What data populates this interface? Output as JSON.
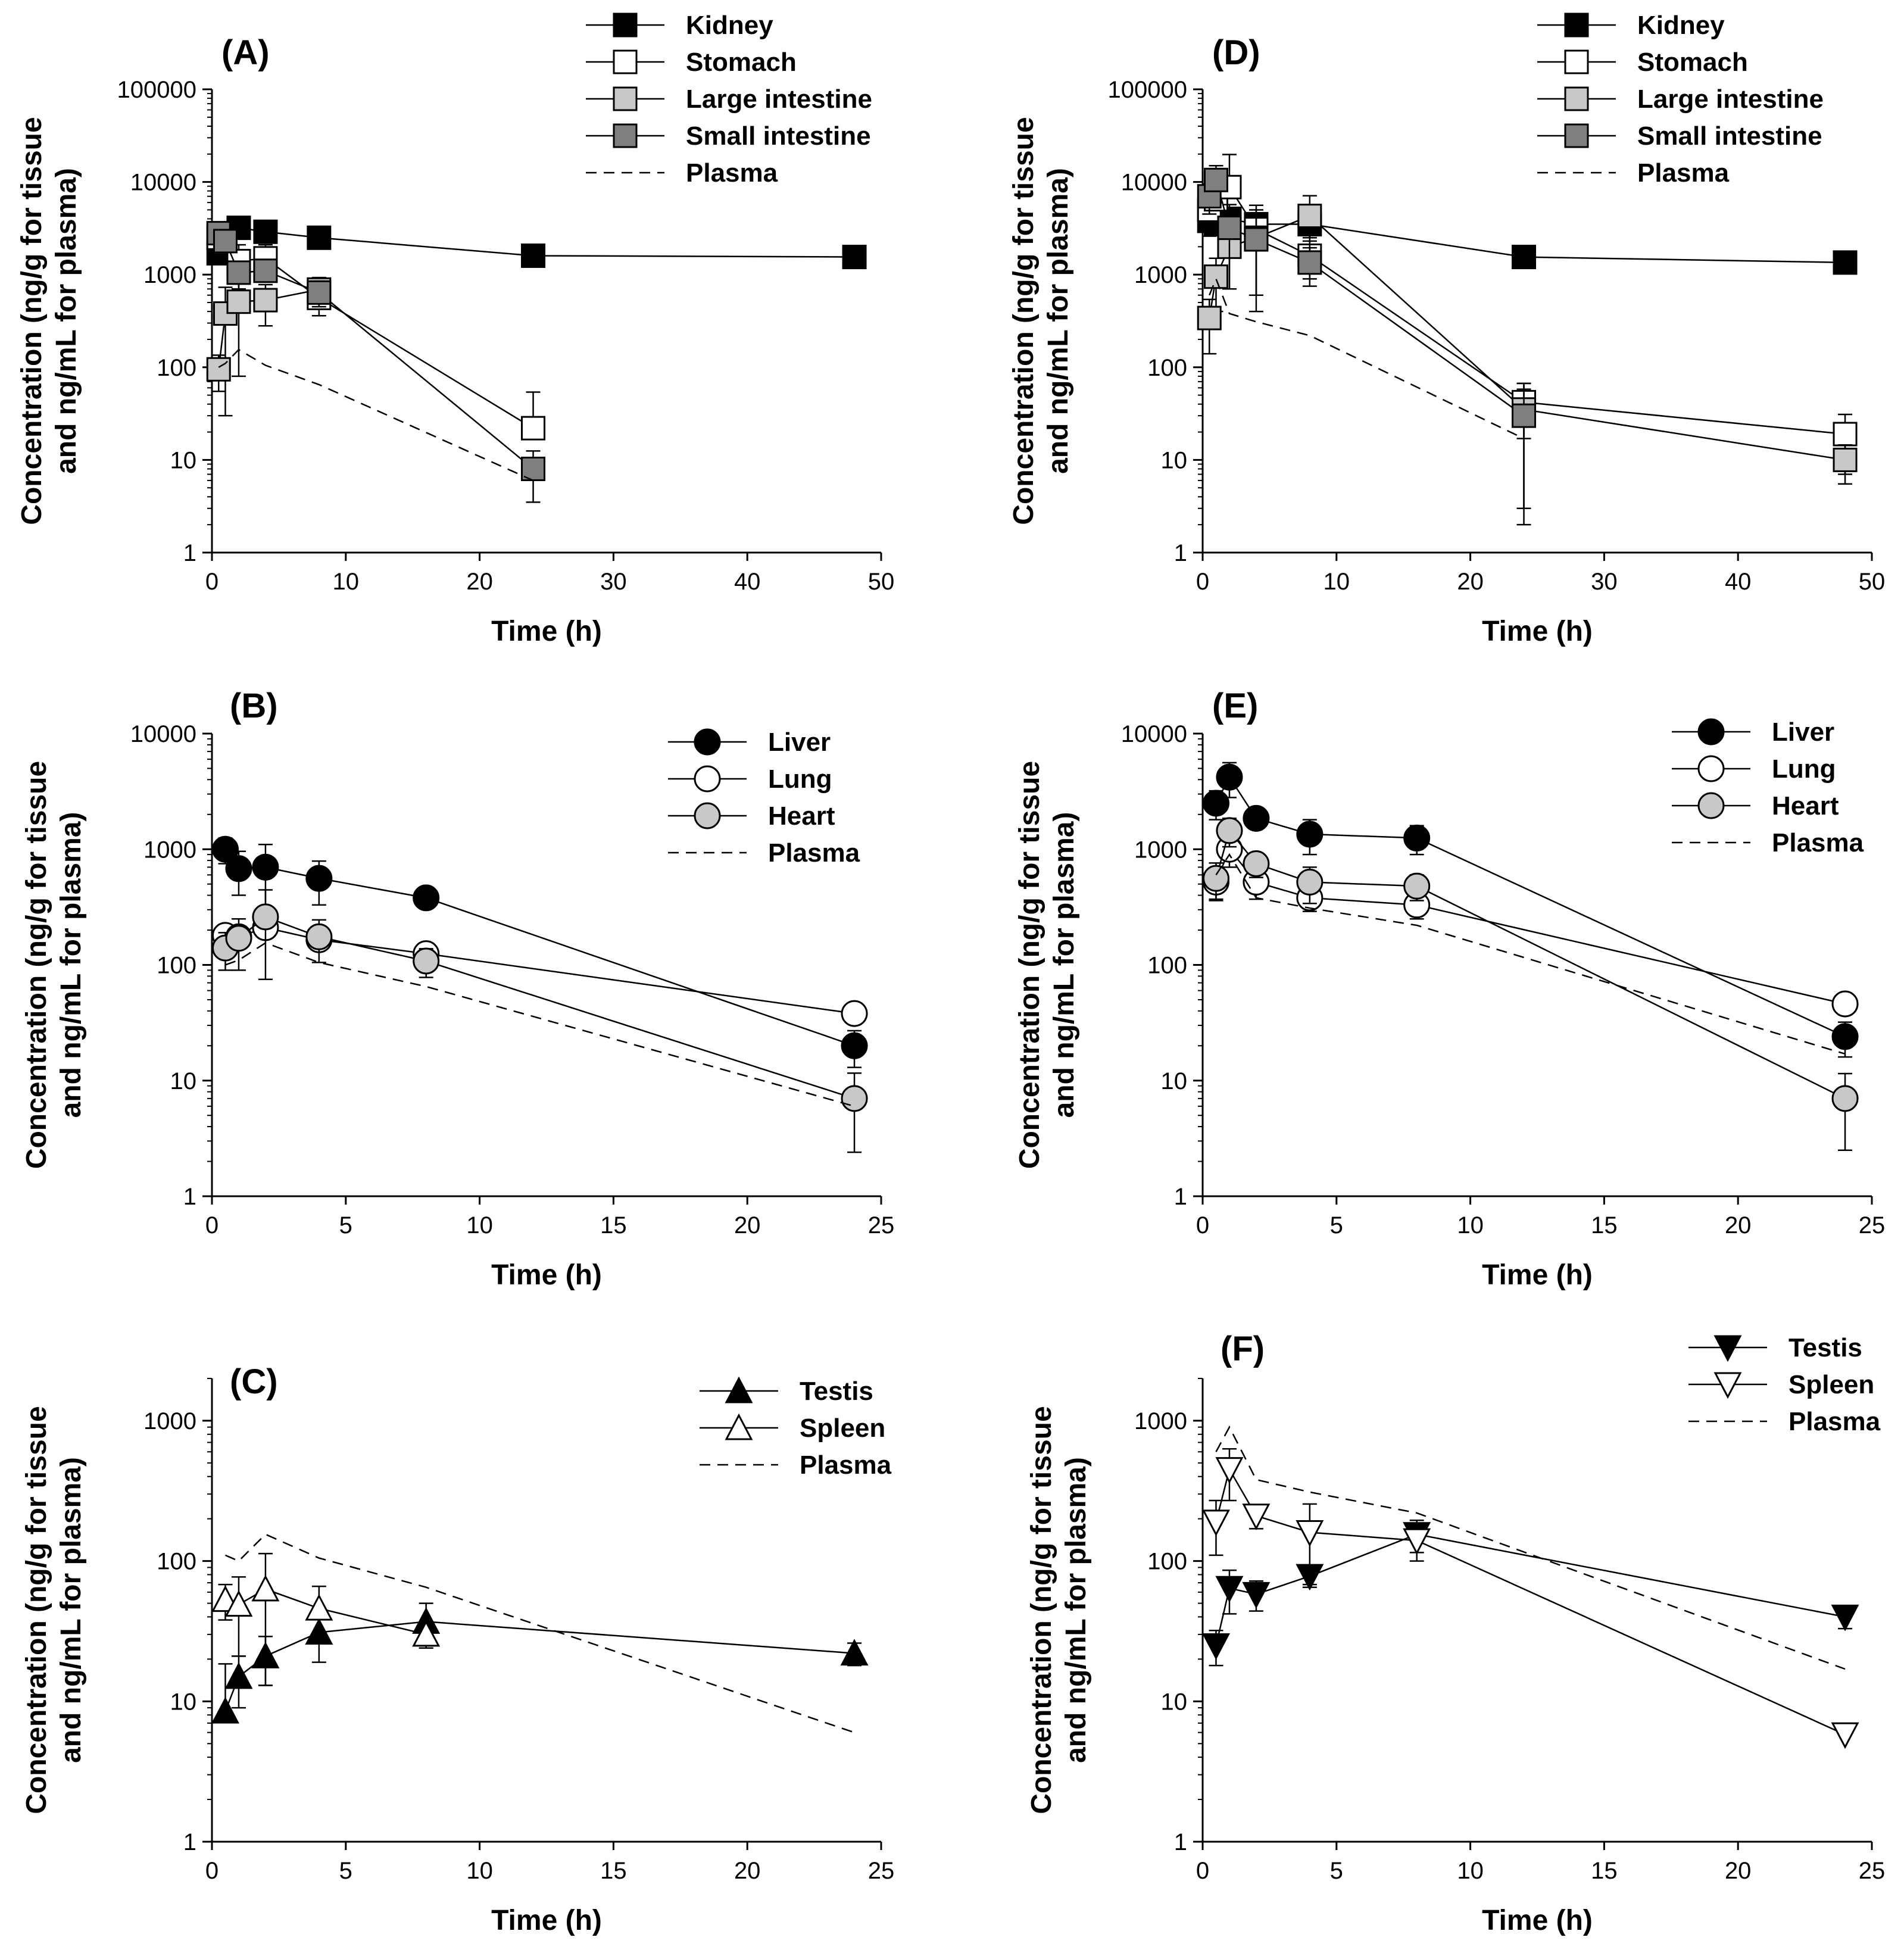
{
  "chart_data": [
    {
      "id": "A",
      "panel_label": "(A)",
      "type": "line",
      "xlabel": "Time (h)",
      "ylabel": [
        "Concentration (ng/g for tissue",
        "and ng/mL for plasma)"
      ],
      "yscale": "log",
      "xlim": [
        0,
        50
      ],
      "ylim": [
        1,
        100000
      ],
      "xticks": [
        "0",
        "10",
        "20",
        "30",
        "40",
        "50"
      ],
      "yticks": [
        "1",
        "10",
        "100",
        "1000",
        "10000",
        "100000"
      ],
      "legend_position": "top-right",
      "series": [
        {
          "name": "Kidney",
          "marker": "square",
          "fill": "#000000",
          "x": [
            0.5,
            1,
            2,
            4,
            8,
            24,
            48
          ],
          "y": [
            1700,
            2300,
            3200,
            2900,
            2500,
            1600,
            1550
          ]
        },
        {
          "name": "Stomach",
          "marker": "square",
          "fill": "#ffffff",
          "x": [
            0.5,
            1,
            2,
            4,
            8,
            24
          ],
          "y": [
            2500,
            2200,
            1400,
            1500,
            560,
            22
          ],
          "err": [
            null,
            null,
            700,
            600,
            200,
            32
          ]
        },
        {
          "name": "Large intestine",
          "marker": "square",
          "fill": "#c8c8c8",
          "x": [
            0.5,
            1,
            2,
            4,
            8
          ],
          "y": [
            95,
            380,
            510,
            530,
            690
          ],
          "err": [
            40,
            350,
            430,
            250,
            240
          ]
        },
        {
          "name": "Small intestine",
          "marker": "square",
          "fill": "#7f7f7f",
          "x": [
            0.5,
            1,
            2,
            4,
            8,
            24
          ],
          "y": [
            2800,
            2300,
            1050,
            1100,
            640,
            8
          ],
          "err": [
            null,
            null,
            null,
            null,
            null,
            4.5
          ]
        },
        {
          "name": "Plasma",
          "dashed": true,
          "x": [
            0.5,
            1,
            2,
            4,
            8,
            24
          ],
          "y": [
            100,
            110,
            155,
            105,
            65,
            6
          ]
        }
      ]
    },
    {
      "id": "B",
      "panel_label": "(B)",
      "type": "line",
      "xlabel": "Time (h)",
      "ylabel": [
        "Concentration (ng/g for tissue",
        "and ng/mL for plasma)"
      ],
      "yscale": "log",
      "xlim": [
        0,
        25
      ],
      "ylim": [
        1,
        10000
      ],
      "xticks": [
        "0",
        "5",
        "10",
        "15",
        "20",
        "25"
      ],
      "yticks": [
        "1",
        "10",
        "100",
        "1000",
        "10000"
      ],
      "legend_position": "top-right",
      "series": [
        {
          "name": "Liver",
          "marker": "circle",
          "fill": "#000000",
          "x": [
            0.5,
            1,
            2,
            4,
            8,
            24
          ],
          "y": [
            1000,
            680,
            700,
            560,
            380,
            20
          ],
          "err": [
            250,
            280,
            400,
            230,
            60,
            7
          ]
        },
        {
          "name": "Lung",
          "marker": "circle",
          "fill": "#ffffff",
          "x": [
            0.5,
            1,
            2,
            4,
            8,
            24
          ],
          "y": [
            180,
            175,
            210,
            165,
            125,
            38
          ],
          "err": [
            null,
            null,
            null,
            null,
            null,
            null
          ]
        },
        {
          "name": "Heart",
          "marker": "circle",
          "fill": "#c8c8c8",
          "x": [
            0.5,
            1,
            2,
            4,
            8,
            24
          ],
          "y": [
            140,
            170,
            260,
            175,
            108,
            7
          ],
          "err": [
            50,
            80,
            185,
            70,
            30,
            4.6
          ]
        },
        {
          "name": "Plasma",
          "dashed": true,
          "x": [
            0.5,
            1,
            2,
            4,
            8,
            24
          ],
          "y": [
            100,
            110,
            155,
            105,
            65,
            6
          ]
        }
      ]
    },
    {
      "id": "C",
      "panel_label": "(C)",
      "type": "line",
      "xlabel": "Time (h)",
      "ylabel": [
        "Concentration (ng/g for tissue",
        "and ng/mL for plasma)"
      ],
      "yscale": "log",
      "xlim": [
        0,
        25
      ],
      "ylim": [
        1,
        2000
      ],
      "xticks": [
        "0",
        "5",
        "10",
        "15",
        "20",
        "25"
      ],
      "yticks": [
        "1",
        "10",
        "100",
        "1000"
      ],
      "legend_position": "top-right",
      "series": [
        {
          "name": "Testis",
          "marker": "triangle-up",
          "fill": "#000000",
          "x": [
            0.5,
            1,
            2,
            4,
            8,
            24
          ],
          "y": [
            8.5,
            15,
            21,
            31,
            37,
            22
          ],
          "err": [
            10,
            6,
            8,
            12,
            13,
            4
          ]
        },
        {
          "name": "Spleen",
          "marker": "triangle-up",
          "fill": "#ffffff",
          "x": [
            0.5,
            1,
            2,
            4,
            8
          ],
          "y": [
            53,
            49,
            63,
            46,
            30
          ],
          "err": [
            15,
            28,
            50,
            20,
            6
          ]
        },
        {
          "name": "Plasma",
          "dashed": true,
          "x": [
            0.5,
            1,
            2,
            4,
            8,
            24
          ],
          "y": [
            110,
            100,
            155,
            105,
            65,
            6
          ]
        }
      ]
    },
    {
      "id": "D",
      "panel_label": "(D)",
      "type": "line",
      "xlabel": "Time (h)",
      "ylabel": [
        "Concentration (ng/g for tissue",
        "and ng/mL for plasma)"
      ],
      "yscale": "log",
      "xlim": [
        0,
        50
      ],
      "ylim": [
        1,
        100000
      ],
      "xticks": [
        "0",
        "10",
        "20",
        "30",
        "40",
        "50"
      ],
      "yticks": [
        "1",
        "10",
        "100",
        "1000",
        "10000",
        "100000"
      ],
      "legend_position": "top-right",
      "series": [
        {
          "name": "Kidney",
          "marker": "square",
          "fill": "#000000",
          "x": [
            0.5,
            1,
            2,
            4,
            8,
            24,
            48
          ],
          "y": [
            3800,
            3500,
            4000,
            3500,
            3500,
            1550,
            1350
          ],
          "err": [
            1200,
            800,
            1200,
            1500,
            1000,
            null,
            null
          ]
        },
        {
          "name": "Stomach",
          "marker": "square",
          "fill": "#ffffff",
          "x": [
            0.5,
            1,
            2,
            4,
            8,
            24,
            48
          ],
          "y": [
            5000,
            6500,
            8800,
            3100,
            1600,
            42,
            19
          ],
          "err": [
            2000,
            3000,
            11000,
            2500,
            700,
            25,
            12
          ]
        },
        {
          "name": "Large intestine",
          "marker": "square",
          "fill": "#c8c8c8",
          "x": [
            0.5,
            1,
            2,
            4,
            8,
            24,
            48
          ],
          "y": [
            340,
            950,
            2000,
            2500,
            4300,
            35,
            10
          ],
          "err": [
            200,
            550,
            1300,
            1900,
            2800,
            32,
            4.5
          ]
        },
        {
          "name": "Small intestine",
          "marker": "square",
          "fill": "#7f7f7f",
          "x": [
            0.5,
            1,
            2,
            4,
            8,
            24
          ],
          "y": [
            7000,
            10500,
            3200,
            2400,
            1350,
            30
          ],
          "err": [
            2500,
            4500,
            2500,
            2000,
            600,
            28
          ]
        },
        {
          "name": "Plasma",
          "dashed": true,
          "x": [
            0.5,
            1,
            2,
            4,
            8,
            24
          ],
          "y": [
            600,
            900,
            380,
            310,
            220,
            17
          ]
        }
      ]
    },
    {
      "id": "E",
      "panel_label": "(E)",
      "type": "line",
      "xlabel": "Time (h)",
      "ylabel": [
        "Concentration (ng/g for tissue",
        "and ng/mL for plasma)"
      ],
      "yscale": "log",
      "xlim": [
        0,
        25
      ],
      "ylim": [
        1,
        10000
      ],
      "xticks": [
        "0",
        "5",
        "10",
        "15",
        "20",
        "25"
      ],
      "yticks": [
        "1",
        "10",
        "100",
        "1000",
        "10000"
      ],
      "legend_position": "top-right",
      "series": [
        {
          "name": "Liver",
          "marker": "circle",
          "fill": "#000000",
          "x": [
            0.5,
            1,
            2,
            4,
            8,
            24
          ],
          "y": [
            2500,
            4200,
            1850,
            1350,
            1250,
            24
          ],
          "err": [
            700,
            1400,
            300,
            450,
            350,
            8
          ]
        },
        {
          "name": "Lung",
          "marker": "circle",
          "fill": "#ffffff",
          "x": [
            0.5,
            1,
            2,
            4,
            8,
            24
          ],
          "y": [
            520,
            1000,
            520,
            380,
            330,
            46
          ],
          "err": [
            150,
            300,
            150,
            90,
            80,
            null
          ]
        },
        {
          "name": "Heart",
          "marker": "circle",
          "fill": "#c8c8c8",
          "x": [
            0.5,
            1,
            2,
            4,
            8,
            24
          ],
          "y": [
            560,
            1450,
            750,
            520,
            480,
            7
          ],
          "err": [
            200,
            400,
            180,
            180,
            120,
            4.5
          ]
        },
        {
          "name": "Plasma",
          "dashed": true,
          "x": [
            0.5,
            1,
            2,
            4,
            8,
            24
          ],
          "y": [
            600,
            900,
            380,
            310,
            220,
            17
          ]
        }
      ]
    },
    {
      "id": "F",
      "panel_label": "(F)",
      "type": "line",
      "xlabel": "Time (h)",
      "ylabel": [
        "Concentration (ng/g for tissue",
        "and ng/mL for plasma)"
      ],
      "yscale": "log",
      "xlim": [
        0,
        25
      ],
      "ylim": [
        1,
        2000
      ],
      "xticks": [
        "0",
        "5",
        "10",
        "15",
        "20",
        "25"
      ],
      "yticks": [
        "1",
        "10",
        "100",
        "1000"
      ],
      "legend_position": "top-right",
      "series": [
        {
          "name": "Testis",
          "marker": "triangle-down",
          "fill": "#000000",
          "x": [
            0.5,
            1,
            2,
            4,
            8,
            24
          ],
          "y": [
            25,
            64,
            58,
            78,
            155,
            40
          ],
          "err": [
            7,
            22,
            14,
            10,
            40,
            7
          ]
        },
        {
          "name": "Spleen",
          "marker": "triangle-down",
          "fill": "#ffffff",
          "x": [
            0.5,
            1,
            2,
            4,
            8,
            24
          ],
          "y": [
            190,
            450,
            210,
            160,
            140,
            5.8
          ],
          "err": [
            80,
            180,
            40,
            95,
            40,
            null
          ]
        },
        {
          "name": "Plasma",
          "dashed": true,
          "x": [
            0.5,
            1,
            2,
            4,
            8,
            24
          ],
          "y": [
            600,
            900,
            380,
            310,
            220,
            17
          ]
        }
      ]
    }
  ]
}
